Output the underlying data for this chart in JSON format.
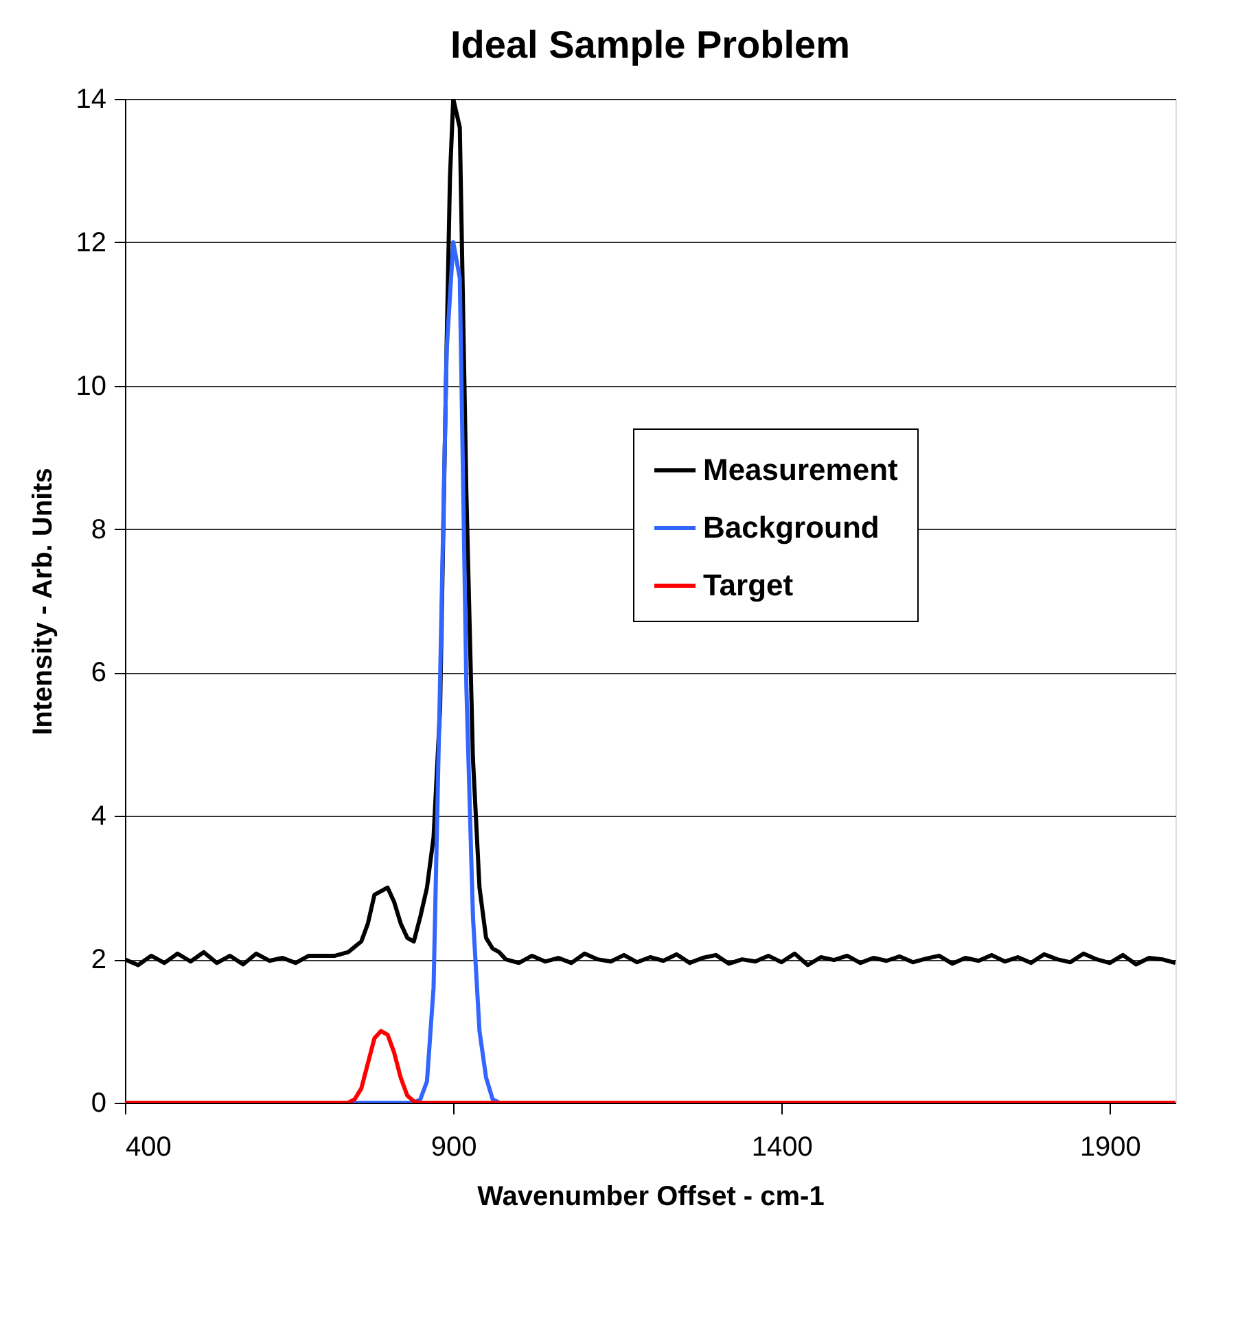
{
  "chart_data": {
    "type": "line",
    "title": "Ideal Sample Problem",
    "xlabel": "Wavenumber Offset - cm-1",
    "ylabel": "Intensity - Arb. Units",
    "xlim": [
      400,
      2000
    ],
    "xticks": [
      400,
      900,
      1400,
      1900
    ],
    "ylim": [
      0,
      14
    ],
    "yticks": [
      0,
      2,
      4,
      6,
      8,
      10,
      12,
      14
    ],
    "grid": "y",
    "legend": "right",
    "marker": "none",
    "line_style": "solid",
    "series": [
      {
        "name": "Measurement",
        "color": "#000000",
        "x": [
          400,
          420,
          440,
          460,
          480,
          500,
          520,
          540,
          560,
          580,
          600,
          620,
          640,
          660,
          680,
          700,
          720,
          740,
          760,
          770,
          780,
          790,
          800,
          810,
          820,
          830,
          840,
          850,
          860,
          870,
          880,
          890,
          895,
          900,
          910,
          920,
          930,
          940,
          950,
          960,
          970,
          980,
          1000,
          1020,
          1040,
          1060,
          1080,
          1100,
          1120,
          1140,
          1160,
          1180,
          1200,
          1220,
          1240,
          1260,
          1280,
          1300,
          1320,
          1340,
          1360,
          1380,
          1400,
          1420,
          1440,
          1460,
          1480,
          1500,
          1520,
          1540,
          1560,
          1580,
          1600,
          1620,
          1640,
          1660,
          1680,
          1700,
          1720,
          1740,
          1760,
          1780,
          1800,
          1820,
          1840,
          1860,
          1880,
          1900,
          1920,
          1940,
          1960,
          1980,
          2000
        ],
        "values": [
          2.0,
          1.92,
          2.05,
          1.95,
          2.08,
          1.97,
          2.1,
          1.95,
          2.05,
          1.93,
          2.08,
          1.98,
          2.02,
          1.95,
          2.05,
          2.05,
          2.05,
          2.1,
          2.25,
          2.5,
          2.9,
          2.95,
          3.0,
          2.8,
          2.5,
          2.3,
          2.25,
          2.6,
          3.0,
          3.7,
          5.5,
          10.6,
          12.9,
          14.0,
          13.6,
          8.5,
          4.8,
          3.0,
          2.3,
          2.15,
          2.1,
          2.0,
          1.95,
          2.05,
          1.97,
          2.02,
          1.95,
          2.08,
          2.0,
          1.97,
          2.06,
          1.96,
          2.03,
          1.98,
          2.07,
          1.95,
          2.02,
          2.06,
          1.94,
          2.0,
          1.97,
          2.05,
          1.96,
          2.08,
          1.92,
          2.03,
          1.99,
          2.05,
          1.95,
          2.02,
          1.98,
          2.04,
          1.96,
          2.01,
          2.05,
          1.94,
          2.02,
          1.98,
          2.06,
          1.97,
          2.03,
          1.95,
          2.07,
          2.0,
          1.96,
          2.08,
          2.0,
          1.95,
          2.06,
          1.93,
          2.02,
          2.0,
          1.95
        ]
      },
      {
        "name": "Background",
        "color": "#3366ff",
        "x": [
          400,
          840,
          850,
          860,
          870,
          880,
          890,
          900,
          910,
          920,
          930,
          940,
          950,
          960,
          970,
          2000
        ],
        "values": [
          0,
          0,
          0.05,
          0.3,
          1.6,
          5.9,
          10.5,
          12.0,
          11.5,
          5.8,
          2.6,
          1.0,
          0.35,
          0.05,
          0,
          0
        ]
      },
      {
        "name": "Target",
        "color": "#ff0000",
        "x": [
          400,
          740,
          750,
          760,
          770,
          780,
          790,
          800,
          810,
          820,
          830,
          840,
          850,
          2000
        ],
        "values": [
          0,
          0,
          0.05,
          0.2,
          0.55,
          0.9,
          1.0,
          0.95,
          0.7,
          0.35,
          0.1,
          0.02,
          0,
          0
        ]
      }
    ]
  }
}
